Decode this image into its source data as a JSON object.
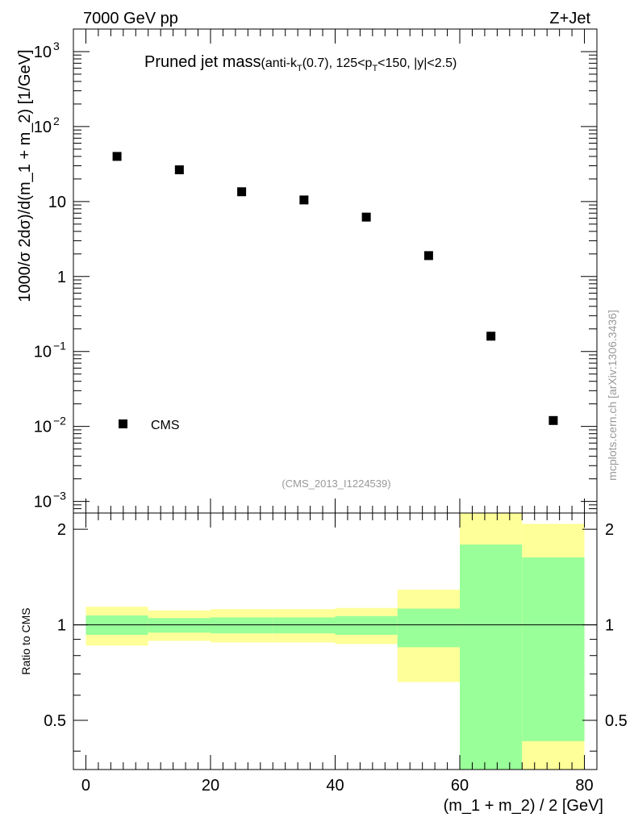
{
  "header": {
    "left": "7000 GeV pp",
    "right": "Z+Jet"
  },
  "plot_title": {
    "main": "Pruned jet mass",
    "sub_a": "(anti-k",
    "sub_a_sub": "T",
    "sub_b": "(0.7), 125<p",
    "sub_b_sub": "T",
    "sub_c": "<150, |y|<2.5)"
  },
  "watermark": "mcplots.cern.ch [arXiv:1306.3436]",
  "analysis_id": "(CMS_2013_I1224539)",
  "colors": {
    "band_outer": "#ffff99",
    "band_inner": "#99ff99",
    "marker": "#000000"
  },
  "chart_data": [
    {
      "type": "scatter",
      "ylabel": "1000/σ 2dσ)/d(m_1 + m_2) [1/GeV]",
      "yscale": "log",
      "ylim": [
        0.0007,
        2000
      ],
      "y_ticks": [
        {
          "v": 0.001,
          "base": "10",
          "exp": "−3"
        },
        {
          "v": 0.01,
          "base": "10",
          "exp": "−2"
        },
        {
          "v": 0.1,
          "base": "10",
          "exp": "−1"
        },
        {
          "v": 1,
          "base": "1",
          "exp": ""
        },
        {
          "v": 10,
          "base": "10",
          "exp": ""
        },
        {
          "v": 100,
          "base": "10",
          "exp": "2"
        },
        {
          "v": 1000,
          "base": "10",
          "exp": "3"
        }
      ],
      "series": [
        {
          "name": "CMS",
          "x": [
            5,
            15,
            25,
            35,
            45,
            55,
            65,
            75
          ],
          "y": [
            40,
            26.5,
            13.5,
            10.5,
            6.2,
            1.9,
            0.16,
            0.012
          ]
        }
      ],
      "legend": [
        "CMS"
      ],
      "legend_position": "bottom-left"
    },
    {
      "type": "area",
      "xlabel": "(m_1 + m_2) / 2 [GeV]",
      "ylabel": "Ratio to CMS",
      "xlim": [
        -2,
        82
      ],
      "ylim": [
        0.35,
        2.25
      ],
      "x_ticks": [
        "0",
        "20",
        "40",
        "60",
        "80"
      ],
      "y_ticks": [
        "0.5",
        "1",
        "2"
      ],
      "bins": [
        {
          "lo": 0,
          "hi": 10,
          "inner": [
            0.93,
            1.07
          ],
          "outer": [
            0.86,
            1.14
          ]
        },
        {
          "lo": 10,
          "hi": 20,
          "inner": [
            0.945,
            1.05
          ],
          "outer": [
            0.89,
            1.11
          ]
        },
        {
          "lo": 20,
          "hi": 30,
          "inner": [
            0.94,
            1.055
          ],
          "outer": [
            0.88,
            1.12
          ]
        },
        {
          "lo": 30,
          "hi": 40,
          "inner": [
            0.94,
            1.055
          ],
          "outer": [
            0.88,
            1.12
          ]
        },
        {
          "lo": 40,
          "hi": 50,
          "inner": [
            0.93,
            1.065
          ],
          "outer": [
            0.87,
            1.13
          ]
        },
        {
          "lo": 50,
          "hi": 60,
          "inner": [
            0.85,
            1.125
          ],
          "outer": [
            0.66,
            1.29
          ]
        },
        {
          "lo": 60,
          "hi": 70,
          "inner": [
            0.35,
            1.79
          ],
          "outer": [
            0.35,
            2.25
          ]
        },
        {
          "lo": 70,
          "hi": 80,
          "inner": [
            0.43,
            1.63
          ],
          "outer": [
            0.35,
            2.08
          ]
        }
      ],
      "reference_line": 1
    }
  ]
}
